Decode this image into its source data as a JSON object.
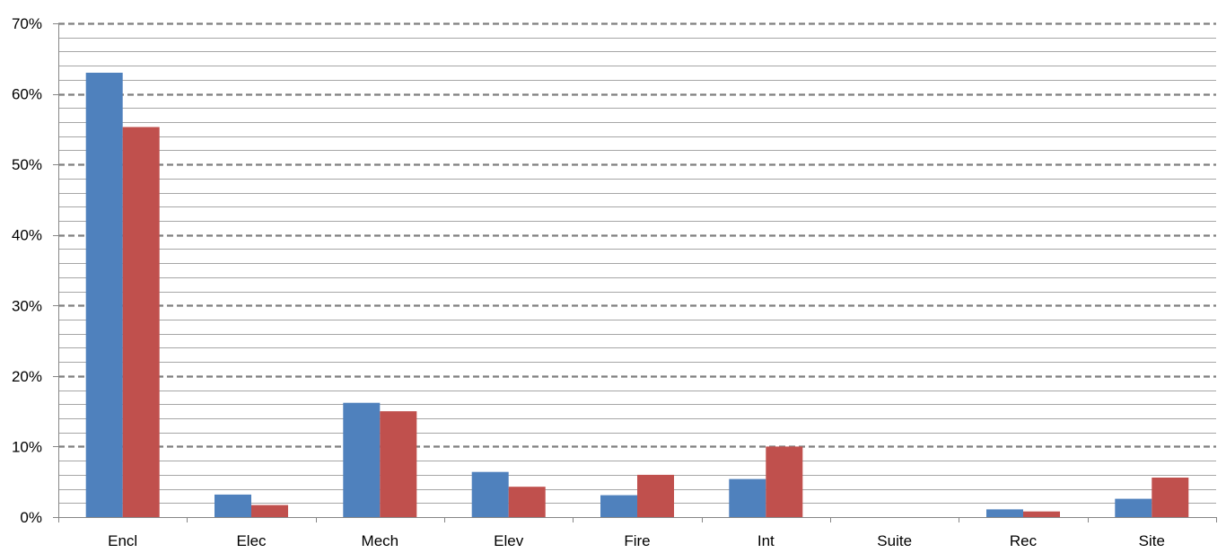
{
  "chart_data": {
    "type": "bar",
    "title": "",
    "xlabel": "",
    "ylabel": "",
    "categories": [
      "Encl",
      "Elec",
      "Mech",
      "Elev",
      "Fire",
      "Int",
      "Suite",
      "Rec",
      "Site"
    ],
    "series": [
      {
        "color": "#4F81BD",
        "values": [
          63.0,
          3.2,
          16.2,
          6.4,
          3.1,
          5.4,
          0.0,
          1.1,
          2.6
        ]
      },
      {
        "color": "#C0504D",
        "values": [
          55.3,
          1.7,
          15.0,
          4.3,
          6.0,
          10.0,
          0.0,
          0.8,
          5.6
        ]
      }
    ],
    "ylim": [
      0,
      70
    ],
    "y_ticks": [
      0,
      10,
      20,
      30,
      40,
      50,
      60,
      70
    ],
    "y_tick_labels": [
      "0%",
      "10%",
      "20%",
      "30%",
      "40%",
      "50%",
      "60%",
      "70%"
    ],
    "major_grid": "dashed",
    "minor_grid_step": 2,
    "legend": "none"
  }
}
